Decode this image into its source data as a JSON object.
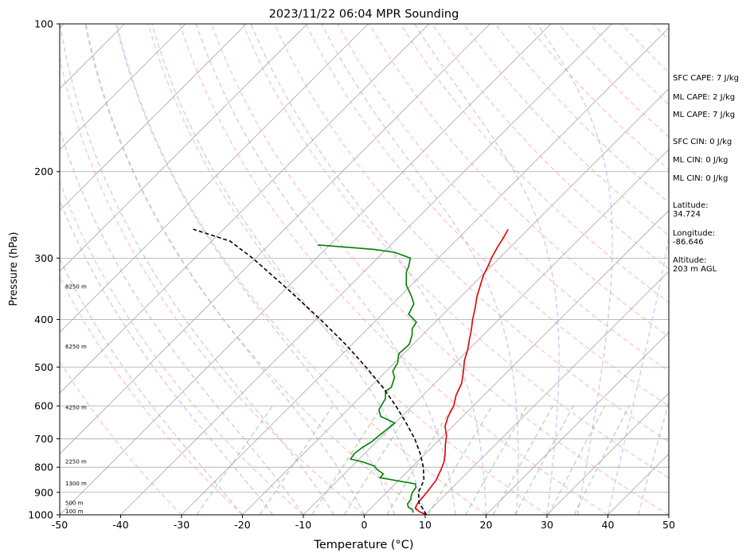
{
  "chart_data": {
    "type": "line",
    "subtype": "skew-t log-p sounding",
    "title": "2023/11/22 06:04 MPR Sounding",
    "xlabel": "Temperature (°C)",
    "ylabel": "Pressure (hPa)",
    "xlim": [
      -50,
      50
    ],
    "ylim": [
      1000,
      100
    ],
    "y_scale": "log",
    "x_ticks": [
      "-50",
      "-40",
      "-30",
      "-20",
      "-10",
      "0",
      "10",
      "20",
      "30",
      "40",
      "50"
    ],
    "y_ticks": [
      "1000",
      "900",
      "800",
      "700",
      "600",
      "500",
      "400",
      "300",
      "200",
      "100"
    ],
    "grid": "horizontal isobars",
    "series": [
      {
        "role": "temperature",
        "color": "#e00000",
        "points": [
          [
            10.2,
            1000
          ],
          [
            8.5,
            985
          ],
          [
            7.3,
            970
          ],
          [
            6.9,
            950
          ],
          [
            6.7,
            920
          ],
          [
            6.4,
            880
          ],
          [
            6.1,
            850
          ],
          [
            5.2,
            810
          ],
          [
            4.4,
            780
          ],
          [
            3.2,
            750
          ],
          [
            1.8,
            720
          ],
          [
            0.5,
            690
          ],
          [
            -1.3,
            660
          ],
          [
            -2.4,
            630
          ],
          [
            -3.2,
            600
          ],
          [
            -4.6,
            570
          ],
          [
            -5.6,
            540
          ],
          [
            -7.3,
            510
          ],
          [
            -8.9,
            485
          ],
          [
            -10.2,
            460
          ],
          [
            -11.5,
            440
          ],
          [
            -12.8,
            420
          ],
          [
            -14.3,
            400
          ],
          [
            -15.7,
            380
          ],
          [
            -17.3,
            360
          ],
          [
            -18.7,
            340
          ],
          [
            -19.8,
            325
          ],
          [
            -20.5,
            312
          ],
          [
            -21.3,
            300
          ],
          [
            -22.1,
            285
          ],
          [
            -22.7,
            272
          ],
          [
            -23.3,
            262
          ]
        ]
      },
      {
        "role": "dewpoint",
        "color": "#008000",
        "points": [
          [
            7.7,
            990
          ],
          [
            7.0,
            975
          ],
          [
            6.0,
            965
          ],
          [
            5.3,
            950
          ],
          [
            5.1,
            930
          ],
          [
            4.6,
            915
          ],
          [
            4.2,
            900
          ],
          [
            4.0,
            880
          ],
          [
            3.3,
            865
          ],
          [
            -3.5,
            840
          ],
          [
            -3.6,
            825
          ],
          [
            -5.2,
            810
          ],
          [
            -6.4,
            795
          ],
          [
            -9.0,
            780
          ],
          [
            -11.4,
            770
          ],
          [
            -11.7,
            750
          ],
          [
            -11.4,
            730
          ],
          [
            -10.8,
            710
          ],
          [
            -10.6,
            690
          ],
          [
            -10.1,
            650
          ],
          [
            -13.5,
            630
          ],
          [
            -14.9,
            610
          ],
          [
            -15.6,
            580
          ],
          [
            -16.8,
            560
          ],
          [
            -16.5,
            550
          ],
          [
            -17.6,
            525
          ],
          [
            -18.9,
            510
          ],
          [
            -19.5,
            490
          ],
          [
            -20.8,
            470
          ],
          [
            -20.6,
            450
          ],
          [
            -21.7,
            430
          ],
          [
            -22.7,
            418
          ],
          [
            -23.1,
            405
          ],
          [
            -25.7,
            390
          ],
          [
            -26.5,
            372
          ],
          [
            -28.0,
            360
          ],
          [
            -30.9,
            340
          ],
          [
            -33.0,
            320
          ],
          [
            -33.5,
            312
          ],
          [
            -34.6,
            300
          ],
          [
            -38.1,
            292
          ],
          [
            -42.0,
            288
          ],
          [
            -47.0,
            285
          ],
          [
            -52.0,
            282
          ]
        ]
      },
      {
        "role": "parcel profile",
        "color": "#000000",
        "dashed": true,
        "points": [
          [
            10.2,
            1000
          ],
          [
            8.5,
            970
          ],
          [
            7.0,
            945
          ],
          [
            5.2,
            900
          ],
          [
            4.1,
            850
          ],
          [
            1.9,
            800
          ],
          [
            -0.9,
            750
          ],
          [
            -4.2,
            700
          ],
          [
            -8.2,
            650
          ],
          [
            -12.7,
            600
          ],
          [
            -17.9,
            550
          ],
          [
            -24.0,
            500
          ],
          [
            -31.0,
            450
          ],
          [
            -39.3,
            400
          ],
          [
            -49.0,
            350
          ],
          [
            -60.5,
            300
          ],
          [
            -67.0,
            277
          ],
          [
            -75.0,
            262
          ]
        ]
      }
    ],
    "height_labels": [
      {
        "text": "100 m",
        "p": 985
      },
      {
        "text": "500 m",
        "p": 948
      },
      {
        "text": "1300 m",
        "p": 865
      },
      {
        "text": "2250 m",
        "p": 780
      },
      {
        "text": "4250 m",
        "p": 605
      },
      {
        "text": "6250 m",
        "p": 455
      },
      {
        "text": "8250 m",
        "p": 343
      }
    ],
    "background_lines": {
      "isotherm_color": "#a9a9a9",
      "dry_adiabat_color": "#ff9999",
      "moist_adiabat_color": "#9999ff",
      "mixing_ratio_color": "#8fbc8f"
    }
  },
  "info": {
    "sfc_cape": "SFC CAPE: 7 J/kg",
    "ml_cape_1": "ML CAPE: 2 J/kg",
    "ml_cape_2": "ML CAPE: 7 J/kg",
    "sfc_cin": "SFC CIN: 0 J/kg",
    "ml_cin_1": "ML CIN: 0 J/kg",
    "ml_cin_2": "ML CIN: 0 J/kg",
    "latitude": "Latitude:\n34.724",
    "longitude": "Longitude:\n-86.646",
    "altitude": "Altitude:\n203 m AGL"
  }
}
